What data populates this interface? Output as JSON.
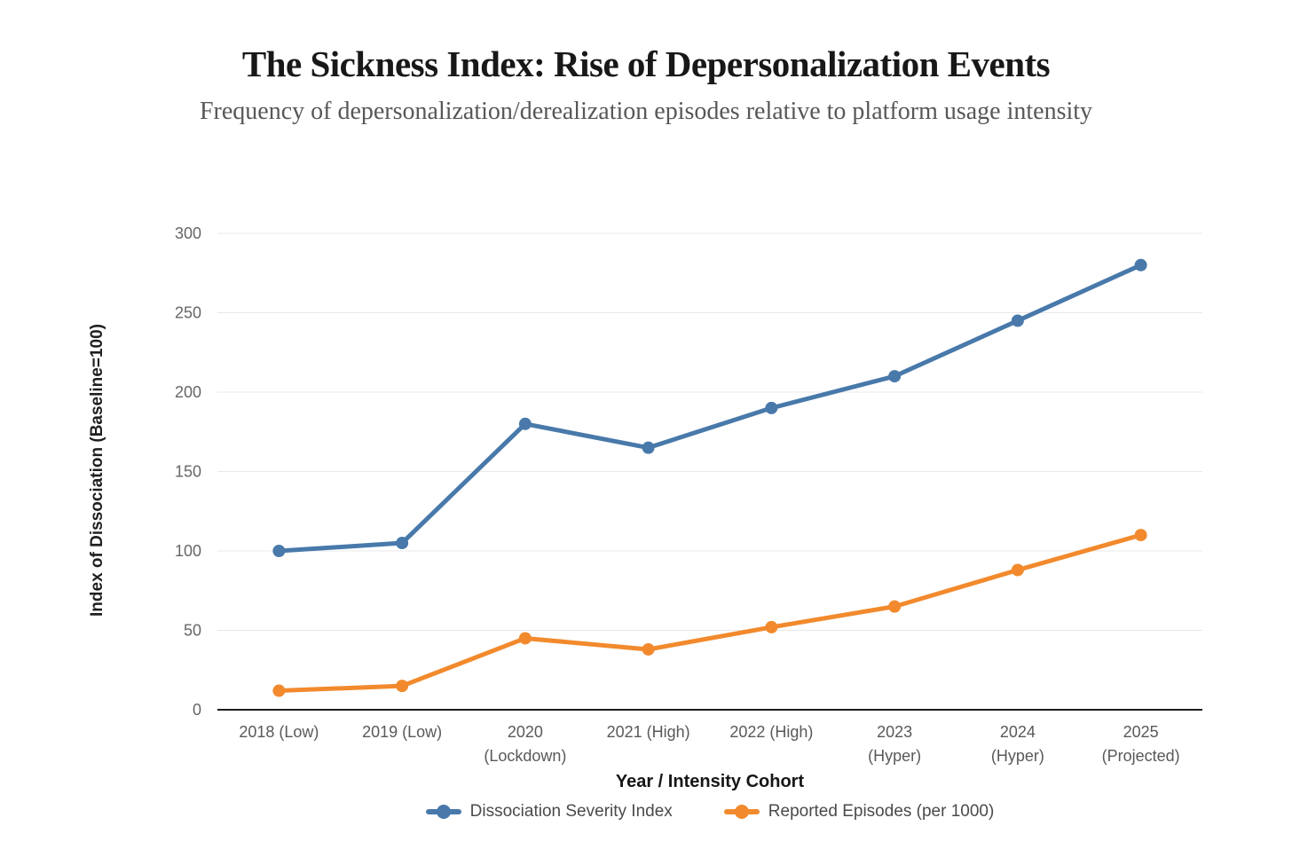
{
  "header": {
    "title": "The Sickness Index: Rise of Depersonalization Events",
    "subtitle": "Frequency of depersonalization/derealization episodes relative to platform usage intensity"
  },
  "chart_data": {
    "type": "line",
    "title": "The Sickness Index: Rise of Depersonalization Events",
    "subtitle": "Frequency of depersonalization/derealization episodes relative to platform usage intensity",
    "xlabel": "Year / Intensity Cohort",
    "ylabel": "Index of Dissociation (Baseline=100)",
    "categories": [
      "2018 (Low)",
      "2019 (Low)",
      "2020 (Lockdown)",
      "2021 (High)",
      "2022 (High)",
      "2023 (Hyper)",
      "2024 (Hyper)",
      "2025 (Projected)"
    ],
    "category_label_lines": [
      [
        "2018 (Low)"
      ],
      [
        "2019 (Low)"
      ],
      [
        "2020",
        "(Lockdown)"
      ],
      [
        "2021 (High)"
      ],
      [
        "2022 (High)"
      ],
      [
        "2023",
        "(Hyper)"
      ],
      [
        "2024",
        "(Hyper)"
      ],
      [
        "2025",
        "(Projected)"
      ]
    ],
    "series": [
      {
        "name": "Dissociation Severity Index",
        "color": "#4879aa",
        "values": [
          100,
          105,
          180,
          165,
          190,
          210,
          245,
          280
        ]
      },
      {
        "name": "Reported Episodes (per 1000)",
        "color": "#f28a2d",
        "values": [
          12,
          15,
          45,
          38,
          52,
          65,
          88,
          110
        ]
      }
    ],
    "yticks": [
      0,
      50,
      100,
      150,
      200,
      250,
      300
    ],
    "ylim": [
      0,
      300
    ],
    "grid": true,
    "legend_position": "bottom",
    "colors": {
      "grid": "#e8e8e8",
      "axis": "#1c1c1c",
      "tick_label": "#666666",
      "category_label": "#595959"
    }
  }
}
